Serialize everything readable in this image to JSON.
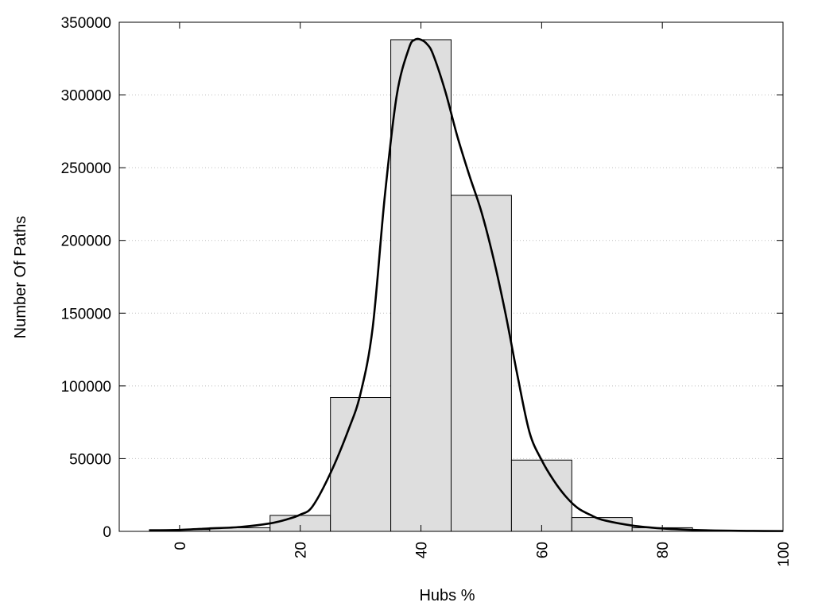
{
  "chart_data": {
    "type": "bar",
    "title": "",
    "xlabel": "Hubs %",
    "ylabel": "Number Of Paths",
    "xlim": [
      -10,
      100
    ],
    "ylim": [
      0,
      350000
    ],
    "x_ticks": [
      0,
      20,
      40,
      60,
      80,
      100
    ],
    "y_ticks": [
      0,
      50000,
      100000,
      150000,
      200000,
      250000,
      300000,
      350000
    ],
    "grid": "horizontal-dotted",
    "legend": "none",
    "bin_width": 10,
    "bins": [
      {
        "center": 0,
        "value": 1200
      },
      {
        "center": 10,
        "value": 2500
      },
      {
        "center": 20,
        "value": 11000
      },
      {
        "center": 30,
        "value": 92000
      },
      {
        "center": 40,
        "value": 338000
      },
      {
        "center": 50,
        "value": 231000
      },
      {
        "center": 60,
        "value": 49000
      },
      {
        "center": 70,
        "value": 9500
      },
      {
        "center": 80,
        "value": 2500
      },
      {
        "center": 90,
        "value": 500
      }
    ],
    "fit_curve": {
      "x": [
        -5,
        0,
        5,
        10,
        15,
        18,
        20,
        22,
        25,
        28,
        30,
        32,
        34,
        36,
        38,
        39,
        40,
        41,
        42,
        44,
        46,
        48,
        50,
        52,
        54,
        56,
        58,
        60,
        62,
        64,
        66,
        68,
        70,
        75,
        80,
        85,
        90,
        95,
        100
      ],
      "y": [
        500,
        1000,
        2000,
        3000,
        5500,
        8500,
        11500,
        17000,
        40000,
        70000,
        95000,
        140000,
        230000,
        300000,
        332000,
        338000,
        338000,
        335000,
        328000,
        303000,
        272000,
        245000,
        220000,
        188000,
        150000,
        107000,
        68000,
        49000,
        35000,
        24000,
        16000,
        11500,
        8000,
        4000,
        2000,
        1000,
        500,
        300,
        200
      ],
      "color": "#000000"
    },
    "bar_fill": "#dedede",
    "bar_stroke": "#000000"
  }
}
